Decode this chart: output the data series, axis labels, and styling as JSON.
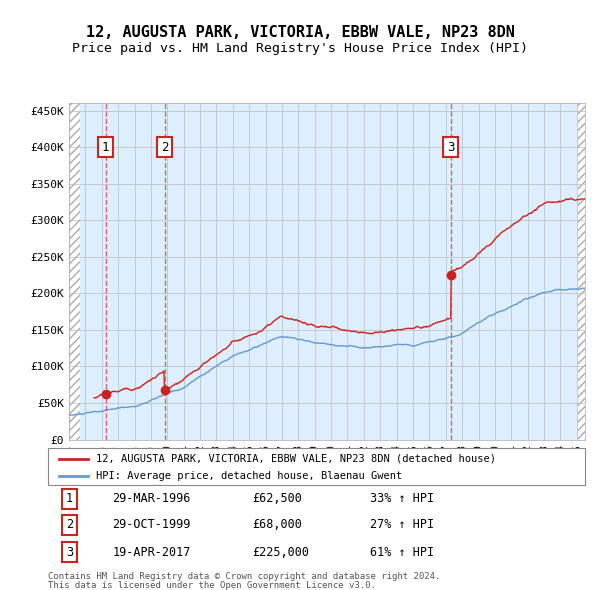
{
  "title_line1": "12, AUGUSTA PARK, VICTORIA, EBBW VALE, NP23 8DN",
  "title_line2": "Price paid vs. HM Land Registry's House Price Index (HPI)",
  "xlim": [
    1994.0,
    2025.5
  ],
  "ylim": [
    0,
    460000
  ],
  "yticks": [
    0,
    50000,
    100000,
    150000,
    200000,
    250000,
    300000,
    350000,
    400000,
    450000
  ],
  "ytick_labels": [
    "£0",
    "£50K",
    "£100K",
    "£150K",
    "£200K",
    "£250K",
    "£300K",
    "£350K",
    "£400K",
    "£450K"
  ],
  "transaction_dates": [
    1996.24,
    1999.83,
    2017.3
  ],
  "transaction_prices": [
    62500,
    68000,
    225000
  ],
  "transaction_labels": [
    "1",
    "2",
    "3"
  ],
  "hpi_color": "#6699cc",
  "price_color": "#cc2222",
  "marker_color": "#cc2222",
  "legend_line1": "12, AUGUSTA PARK, VICTORIA, EBBW VALE, NP23 8DN (detached house)",
  "legend_line2": "HPI: Average price, detached house, Blaenau Gwent",
  "table_data": [
    [
      "1",
      "29-MAR-1996",
      "£62,500",
      "33% ↑ HPI"
    ],
    [
      "2",
      "29-OCT-1999",
      "£68,000",
      "27% ↑ HPI"
    ],
    [
      "3",
      "19-APR-2017",
      "£225,000",
      "61% ↑ HPI"
    ]
  ],
  "footnote_line1": "Contains HM Land Registry data © Crown copyright and database right 2024.",
  "footnote_line2": "This data is licensed under the Open Government Licence v3.0.",
  "background_main_color": "#ddeeff",
  "grid_color": "#bbbbbb",
  "dashed_line_color": "#cc4444"
}
